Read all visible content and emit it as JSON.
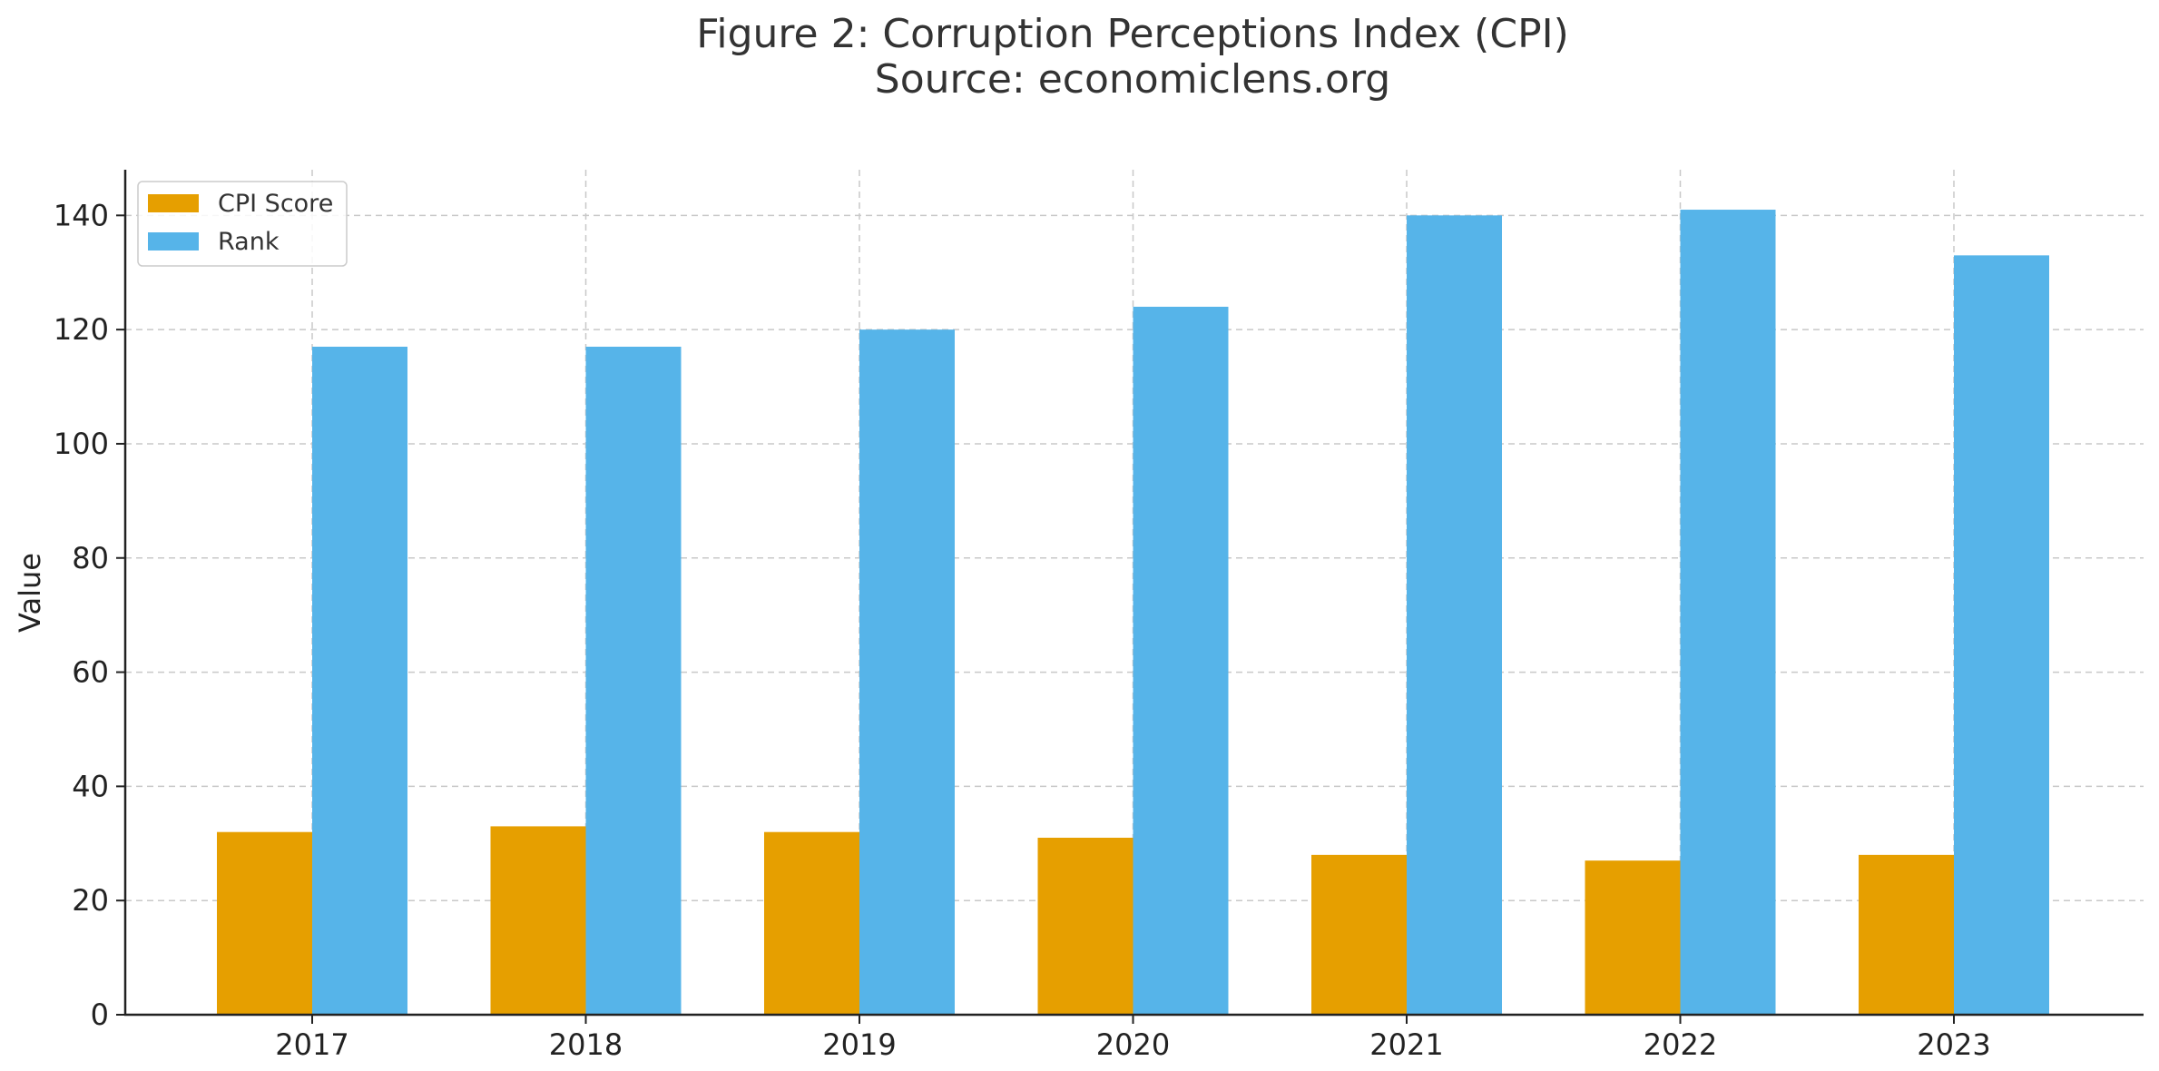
{
  "chart_data": {
    "type": "bar",
    "title_line1": "Figure 2: Corruption Perceptions Index (CPI)",
    "title_line2": "Source: economiclens.org",
    "xlabel": "",
    "ylabel": "Value",
    "categories": [
      "2017",
      "2018",
      "2019",
      "2020",
      "2021",
      "2022",
      "2023"
    ],
    "series": [
      {
        "name": "CPI Score",
        "color": "#E69F00",
        "values": [
          32,
          33,
          32,
          31,
          28,
          27,
          28
        ]
      },
      {
        "name": "Rank",
        "color": "#56B4E9",
        "values": [
          117,
          117,
          120,
          124,
          140,
          141,
          133
        ]
      }
    ],
    "ylim": [
      0,
      148
    ],
    "yticks": [
      "0",
      "20",
      "40",
      "60",
      "80",
      "100",
      "120",
      "140"
    ],
    "grid": true,
    "legend_position": "top-left"
  }
}
